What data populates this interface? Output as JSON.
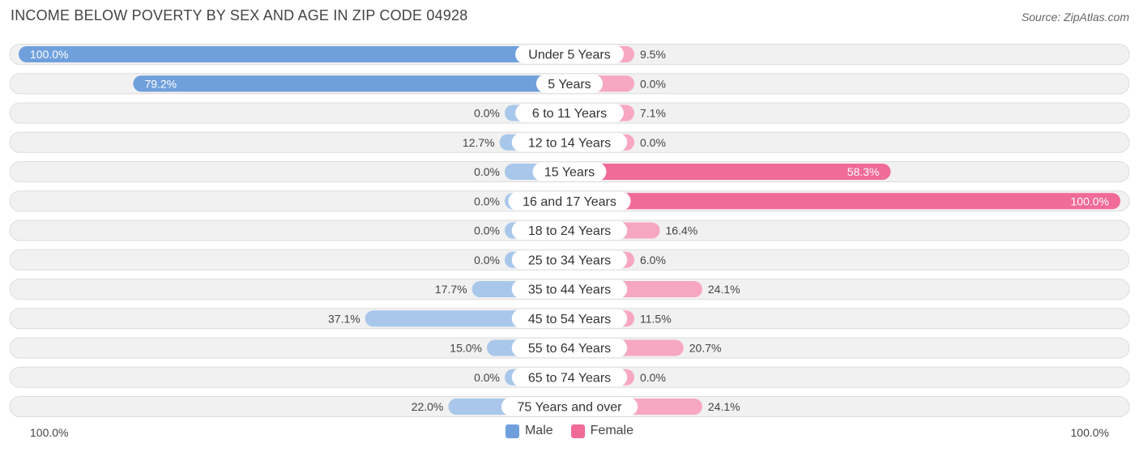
{
  "title": "INCOME BELOW POVERTY BY SEX AND AGE IN ZIP CODE 04928",
  "source": "Source: ZipAtlas.com",
  "axis": {
    "left_label": "100.0%",
    "right_label": "100.0%"
  },
  "legend": [
    {
      "label": "Male",
      "color": "#6fa0dc"
    },
    {
      "label": "Female",
      "color": "#f06b98"
    }
  ],
  "chart_data": {
    "type": "bar",
    "orientation": "horizontal-diverging",
    "categories": [
      "Under 5 Years",
      "5 Years",
      "6 to 11 Years",
      "12 to 14 Years",
      "15 Years",
      "16 and 17 Years",
      "18 to 24 Years",
      "25 to 34 Years",
      "35 to 44 Years",
      "45 to 54 Years",
      "55 to 64 Years",
      "65 to 74 Years",
      "75 Years and over"
    ],
    "series": [
      {
        "name": "Male",
        "values": [
          100.0,
          79.2,
          0.0,
          12.7,
          0.0,
          0.0,
          0.0,
          0.0,
          17.7,
          37.1,
          15.0,
          0.0,
          22.0
        ],
        "labels": [
          "100.0%",
          "79.2%",
          "0.0%",
          "12.7%",
          "0.0%",
          "0.0%",
          "0.0%",
          "0.0%",
          "17.7%",
          "37.1%",
          "15.0%",
          "0.0%",
          "22.0%"
        ]
      },
      {
        "name": "Female",
        "values": [
          9.5,
          0.0,
          7.1,
          0.0,
          58.3,
          100.0,
          16.4,
          6.0,
          24.1,
          11.5,
          20.7,
          0.0,
          24.1
        ],
        "labels": [
          "9.5%",
          "0.0%",
          "7.1%",
          "0.0%",
          "58.3%",
          "100.0%",
          "16.4%",
          "6.0%",
          "24.1%",
          "11.5%",
          "20.7%",
          "0.0%",
          "24.1%"
        ]
      }
    ],
    "xlim": [
      0,
      100
    ],
    "colors": {
      "male_strong": "#6fa0dc",
      "male_light": "#a9c7ea",
      "female_strong": "#f06b98",
      "female_light": "#f7a7c2",
      "track": "#f1f1f1",
      "track_border": "#dddddd"
    }
  }
}
